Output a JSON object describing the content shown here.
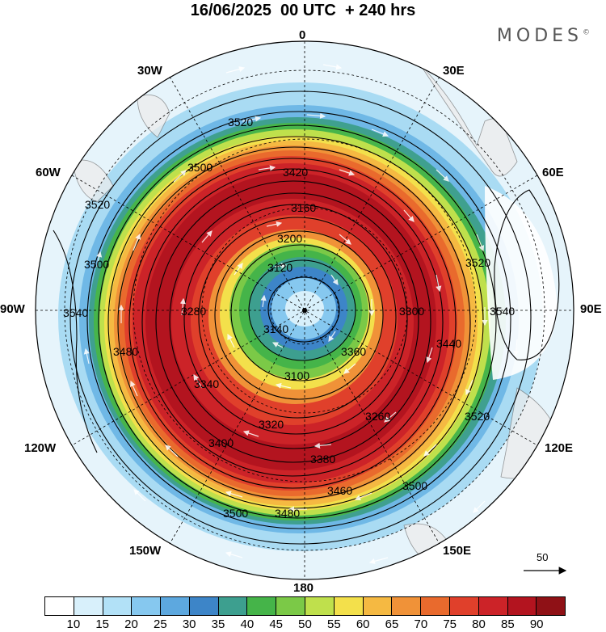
{
  "title": "16/06/2025  00 UTC  + 240 hrs",
  "brand": "MODES",
  "brand_mark": "©",
  "longitude_labels": {
    "n": "0",
    "ne": "30E",
    "e60": "60E",
    "e90": "90E",
    "e120": "120E",
    "e150": "150E",
    "s": "180",
    "w150": "150W",
    "w120": "120W",
    "w90": "90W",
    "w60": "60W",
    "w30": "30W"
  },
  "contour_labels": [
    "3520",
    "3500",
    "3420",
    "3460",
    "3380",
    "3280",
    "3320",
    "3200",
    "3120",
    "3140",
    "3300",
    "3100",
    "3260",
    "3340",
    "3400",
    "3480",
    "3540",
    "3160",
    "3360",
    "3440"
  ],
  "colorbar": {
    "colors": [
      "#ffffff",
      "#d8f0fb",
      "#b2e1f7",
      "#86c8ef",
      "#5da8df",
      "#3d85c8",
      "#3d9f8f",
      "#45b449",
      "#7bc947",
      "#bfe04c",
      "#f3e04b",
      "#f5b942",
      "#f09238",
      "#e96a2d",
      "#e0402b",
      "#cc2328",
      "#b3141f",
      "#8f1116"
    ],
    "ticks": [
      "10",
      "15",
      "20",
      "25",
      "30",
      "35",
      "40",
      "45",
      "50",
      "55",
      "60",
      "65",
      "70",
      "75",
      "80",
      "85",
      "90"
    ]
  },
  "vector_reference": "50"
}
